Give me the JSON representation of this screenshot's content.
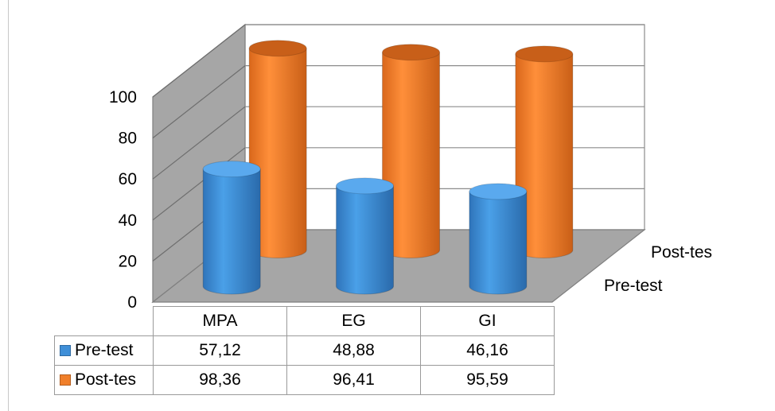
{
  "chart_data": {
    "type": "bar",
    "style": "3d-cylinder",
    "categories": [
      "MPA",
      "EG",
      "GI"
    ],
    "series": [
      {
        "name": "Pre-test",
        "values": [
          57.12,
          48.88,
          46.16
        ],
        "value_labels": [
          "57,12",
          "48,88",
          "46,16"
        ],
        "color": "#3f8fd8"
      },
      {
        "name": "Post-tes",
        "values": [
          98.36,
          96.41,
          95.59
        ],
        "value_labels": [
          "98,36",
          "96,41",
          "95,59"
        ],
        "color": "#f07f2a"
      }
    ],
    "y_ticks": [
      "0",
      "20",
      "40",
      "60",
      "80",
      "100"
    ],
    "ylim": [
      0,
      100
    ],
    "grid": true,
    "data_table": true
  }
}
